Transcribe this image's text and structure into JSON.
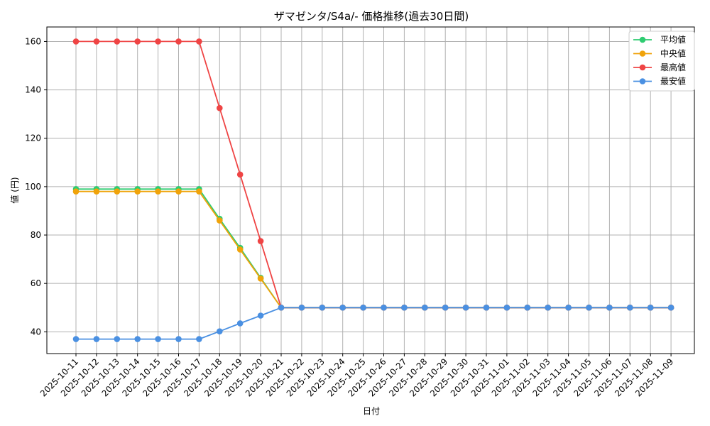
{
  "chart_data": {
    "type": "line",
    "title": "ザマゼンタ/S4a/- 価格推移(過去30日間)",
    "xlabel": "日付",
    "ylabel": "値 (円)",
    "x": [
      "2025-10-11",
      "2025-10-12",
      "2025-10-13",
      "2025-10-14",
      "2025-10-15",
      "2025-10-16",
      "2025-10-17",
      "2025-10-18",
      "2025-10-19",
      "2025-10-20",
      "2025-10-21",
      "2025-10-22",
      "2025-10-23",
      "2025-10-24",
      "2025-10-25",
      "2025-10-26",
      "2025-10-27",
      "2025-10-28",
      "2025-10-29",
      "2025-10-30",
      "2025-10-31",
      "2025-11-01",
      "2025-11-02",
      "2025-11-03",
      "2025-11-04",
      "2025-11-05",
      "2025-11-06",
      "2025-11-07",
      "2025-11-08",
      "2025-11-09"
    ],
    "yticks": [
      40,
      60,
      80,
      100,
      120,
      140,
      160
    ],
    "ylim": [
      31,
      166
    ],
    "grid": true,
    "legend_position": "top-right",
    "series": [
      {
        "name": "平均値",
        "color": "#2ecc71",
        "values": [
          99,
          99,
          99,
          99,
          99,
          99,
          99,
          86.7,
          74.7,
          62.3,
          50,
          50,
          50,
          50,
          50,
          50,
          50,
          50,
          50,
          50,
          50,
          50,
          50,
          50,
          50,
          50,
          50,
          50,
          50,
          50
        ]
      },
      {
        "name": "中央値",
        "color": "#f0a30a",
        "values": [
          98,
          98,
          98,
          98,
          98,
          98,
          98,
          86,
          74,
          62,
          50,
          50,
          50,
          50,
          50,
          50,
          50,
          50,
          50,
          50,
          50,
          50,
          50,
          50,
          50,
          50,
          50,
          50,
          50,
          50
        ]
      },
      {
        "name": "最高値",
        "color": "#ef4444",
        "values": [
          160,
          160,
          160,
          160,
          160,
          160,
          160,
          132.5,
          105,
          77.5,
          50,
          50,
          50,
          50,
          50,
          50,
          50,
          50,
          50,
          50,
          50,
          50,
          50,
          50,
          50,
          50,
          50,
          50,
          50,
          50
        ]
      },
      {
        "name": "最安値",
        "color": "#4a90e2",
        "values": [
          37,
          37,
          37,
          37,
          37,
          37,
          37,
          40.2,
          43.5,
          46.7,
          50,
          50,
          50,
          50,
          50,
          50,
          50,
          50,
          50,
          50,
          50,
          50,
          50,
          50,
          50,
          50,
          50,
          50,
          50,
          50
        ]
      }
    ]
  }
}
